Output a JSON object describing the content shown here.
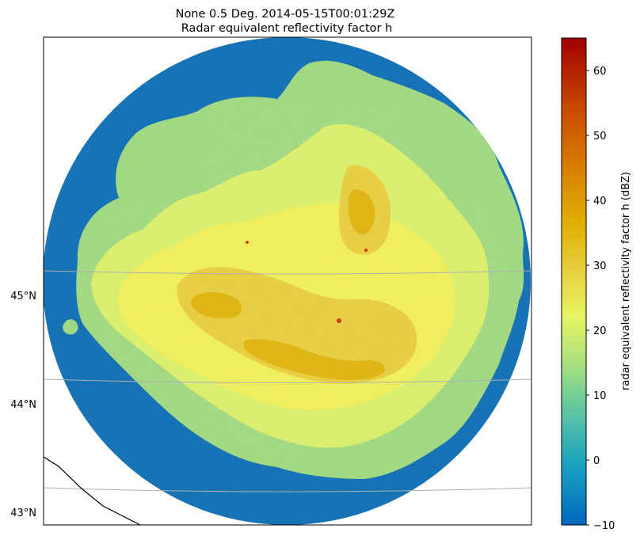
{
  "chart_data": {
    "type": "heatmap",
    "title": "None 0.5 Deg. 2014-05-15T00:01:29Z",
    "subtitle": "Radar equivalent reflectivity factor h",
    "lat_ticks": [
      {
        "value": 45,
        "label": "45°N"
      },
      {
        "value": 44,
        "label": "44°N"
      },
      {
        "value": 43,
        "label": "43°N"
      }
    ],
    "colorbar": {
      "label": "radar equivalent reflectivity factor h (dBZ)",
      "range": [
        -10,
        65
      ],
      "ticks": [
        -10,
        0,
        10,
        20,
        30,
        40,
        50,
        60
      ],
      "tick_labels": [
        "−10",
        "0",
        "10",
        "20",
        "30",
        "40",
        "50",
        "60"
      ],
      "colors": [
        "#0068c0",
        "#1aa0c0",
        "#62c8a0",
        "#a8e080",
        "#e8f460",
        "#e8d040",
        "#e0b000",
        "#d88000",
        "#c84800",
        "#a00000"
      ]
    },
    "background_value": -10,
    "map_features": [
      "gridlines",
      "coastline"
    ]
  }
}
